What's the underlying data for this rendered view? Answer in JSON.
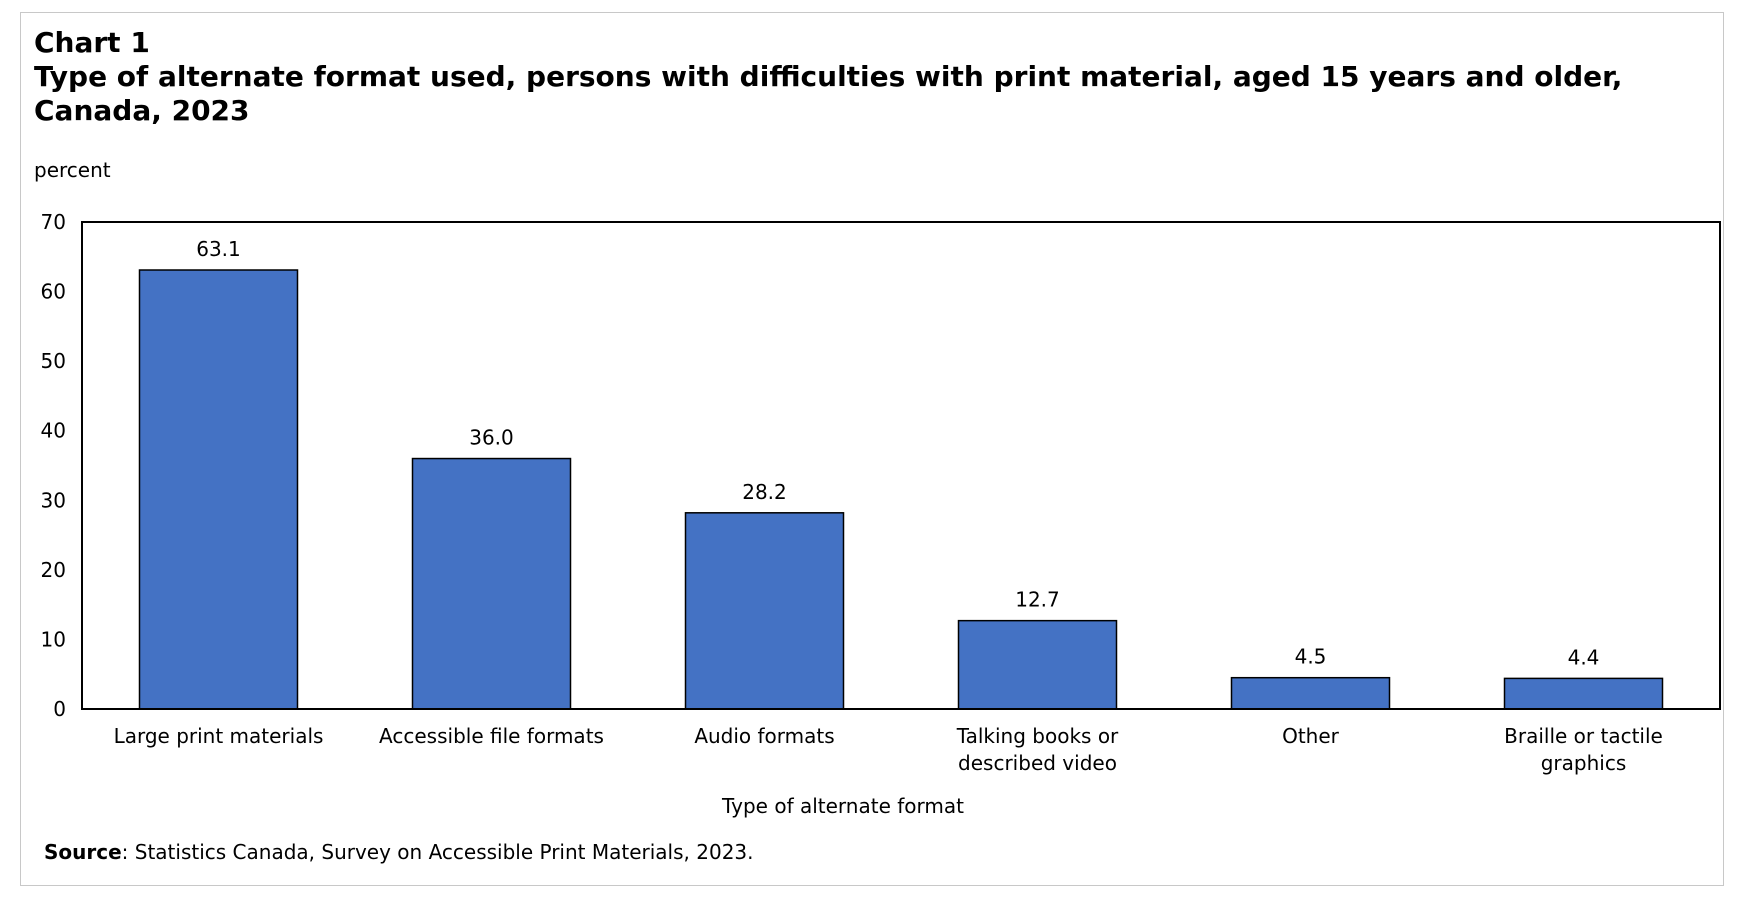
{
  "chart_title": "Chart 1",
  "chart_subtitle": "Type of alternate format used, persons with difficulties  with print material, aged 15 years and older, Canada, 2023",
  "source": {
    "label": "Source",
    "text": ": Statistics Canada, Survey on Accessible Print Materials, 2023."
  },
  "colors": {
    "bar_fill": "#4472C4",
    "bar_stroke": "#000000",
    "plot_border": "#000000"
  },
  "chart_data": {
    "type": "bar",
    "title": "Type of alternate format used, persons with difficulties  with print material, aged 15 years and older, Canada, 2023",
    "xlabel": "Type of alternate format",
    "ylabel": "percent",
    "ylim": [
      0,
      70
    ],
    "yticks": [
      0,
      10,
      20,
      30,
      40,
      50,
      60,
      70
    ],
    "grid": false,
    "legend": "none",
    "categories": [
      [
        "Large print materials"
      ],
      [
        "Accessible file formats"
      ],
      [
        "Audio formats"
      ],
      [
        "Talking books or",
        "described video"
      ],
      [
        "Other"
      ],
      [
        "Braille or tactile",
        "graphics"
      ]
    ],
    "values": [
      63.1,
      36.0,
      28.2,
      12.7,
      4.5,
      4.4
    ],
    "data_labels": [
      "63.1",
      "36.0",
      "28.2",
      "12.7",
      "4.5",
      "4.4"
    ]
  }
}
